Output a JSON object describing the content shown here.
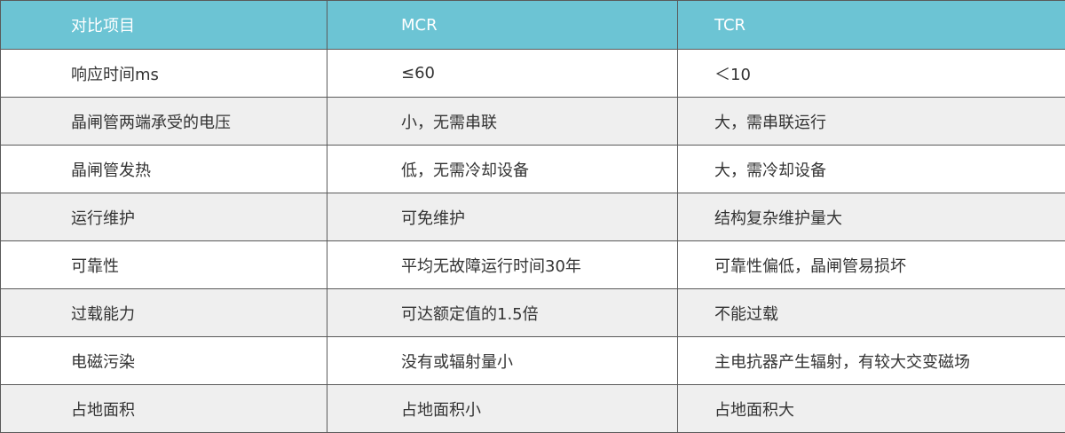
{
  "header_color": "#6cc4d4",
  "headers": [
    "对比项目",
    "MCR",
    "TCR"
  ],
  "rows": [
    [
      "响应时间ms",
      "≤60",
      "＜10"
    ],
    [
      "晶闸管两端承受的电压",
      "小，无需串联",
      "大，需串联运行"
    ],
    [
      "晶闸管发热",
      "低，无需冷却设备",
      "大，需冷却设备"
    ],
    [
      "运行维护",
      "可免维护",
      "结构复杂维护量大"
    ],
    [
      "可靠性",
      "平均无故障运行时间30年",
      "可靠性偏低，晶闸管易损坏"
    ],
    [
      "过载能力",
      "可达额定值的1.5倍",
      "不能过载"
    ],
    [
      "电磁污染",
      "没有或辐射量小",
      "主电抗器产生辐射，有较大交变磁场"
    ],
    [
      "占地面积",
      "占地面积小",
      "占地面积大"
    ]
  ]
}
